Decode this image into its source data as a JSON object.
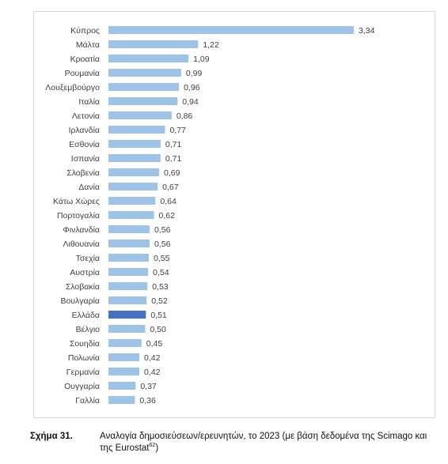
{
  "chart_data": {
    "type": "bar",
    "orientation": "horizontal",
    "categories": [
      "Κύπρος",
      "Μάλτα",
      "Κροατία",
      "Ρουμανία",
      "Λουξεμβούργο",
      "Ιταλία",
      "Λετονία",
      "Ιρλανδία",
      "Εσθονία",
      "Ισπανία",
      "Σλοβενία",
      "Δανία",
      "Κάτω Χώρες",
      "Πορτογαλία",
      "Φινλανδία",
      "Λιθουανία",
      "Τσεχία",
      "Αυστρία",
      "Σλοβακία",
      "Βουλγαρία",
      "Ελλάδα",
      "Βέλγιο",
      "Σουηδία",
      "Πολωνία",
      "Γερμανία",
      "Ουγγαρία",
      "Γαλλία"
    ],
    "values": [
      3.34,
      1.22,
      1.09,
      0.99,
      0.96,
      0.94,
      0.86,
      0.77,
      0.71,
      0.71,
      0.69,
      0.67,
      0.64,
      0.62,
      0.56,
      0.56,
      0.55,
      0.54,
      0.53,
      0.52,
      0.51,
      0.5,
      0.45,
      0.42,
      0.42,
      0.37,
      0.36
    ],
    "value_labels": [
      "3,34",
      "1,22",
      "1,09",
      "0,99",
      "0,96",
      "0,94",
      "0,86",
      "0,77",
      "0,71",
      "0,71",
      "0,69",
      "0,67",
      "0,64",
      "0,62",
      "0,56",
      "0,56",
      "0,55",
      "0,54",
      "0,53",
      "0,52",
      "0,51",
      "0,50",
      "0,45",
      "0,42",
      "0,42",
      "0,37",
      "0,36"
    ],
    "highlight_category": "Ελλάδα",
    "colors": {
      "bar": "#9dc3e6",
      "highlight": "#4472c4"
    },
    "grid": false,
    "legend": "none",
    "xlim": [
      0,
      3.34
    ]
  },
  "caption": {
    "number": "Σχήμα 31.",
    "text": "Αναλογία δημοσιεύσεων/ερευνητών, το 2023 (με βάση δεδομένα της Scimago και της Eurostat",
    "footnote": "62",
    "closing": ")"
  }
}
